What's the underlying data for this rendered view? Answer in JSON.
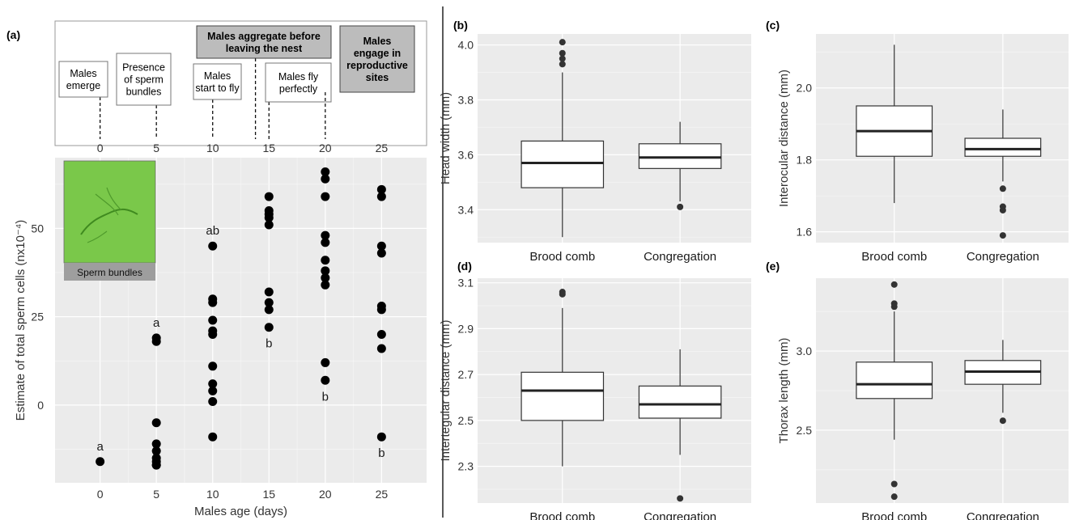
{
  "timeline": {
    "ticks": [
      "0",
      "5",
      "10",
      "15",
      "20",
      "25"
    ],
    "events": [
      {
        "day": 0,
        "lines": [
          "Males",
          "emerge"
        ],
        "style": "light"
      },
      {
        "day": 5,
        "lines": [
          "Presence",
          "of sperm",
          "bundles"
        ],
        "style": "light"
      },
      {
        "day": 10,
        "lines": [
          "Males",
          "start to fly"
        ],
        "style": "light"
      },
      {
        "day": 13.8,
        "lines": [
          "Males aggregate before",
          "leaving the nest"
        ],
        "style": "dark"
      },
      {
        "day": 15,
        "lines": [
          "Males fly",
          "perfectly"
        ],
        "style": "light"
      },
      {
        "day": 20,
        "lines": [
          "Males",
          "engage in",
          "reproductive",
          "sites"
        ],
        "style": "dark"
      }
    ]
  },
  "inset": {
    "caption": "Sperm bundles"
  },
  "chart_data": [
    {
      "panel": "(a)",
      "type": "scatter",
      "xlabel": "Males age (days)",
      "ylabel": "Estimate of total sperm cells (nx10⁻⁴)",
      "xticks": [
        "0",
        "5",
        "10",
        "15",
        "20",
        "25"
      ],
      "yticks": [
        "0",
        "25",
        "50"
      ],
      "xlim": [
        -4,
        29
      ],
      "ylim": [
        -22,
        70
      ],
      "groups": [
        {
          "x": 0,
          "y": [
            -16
          ],
          "letter": "a",
          "letter_pos": "above"
        },
        {
          "x": 5,
          "y": [
            19,
            18,
            -5,
            -11,
            -13,
            -15,
            -17,
            -17,
            -16
          ],
          "letter": "a",
          "letter_pos": "above"
        },
        {
          "x": 10,
          "y": [
            45,
            30,
            29,
            24,
            21,
            20,
            11,
            6,
            4,
            1,
            -9
          ],
          "letter": "ab",
          "letter_pos": "above"
        },
        {
          "x": 15,
          "y": [
            59,
            55,
            54,
            53,
            51,
            32,
            29,
            27,
            22
          ],
          "letter": "b",
          "letter_pos": "below"
        },
        {
          "x": 20,
          "y": [
            66,
            64,
            59,
            48,
            46,
            41,
            38,
            36,
            34,
            12,
            7
          ],
          "letter": "b",
          "letter_pos": "below"
        },
        {
          "x": 25,
          "y": [
            61,
            59,
            45,
            43,
            28,
            27,
            20,
            16,
            -9
          ],
          "letter": "b",
          "letter_pos": "below"
        }
      ]
    },
    {
      "panel": "(b)",
      "type": "boxplot",
      "ylabel": "Head width (mm)",
      "categories": [
        "Brood comb",
        "Congregation"
      ],
      "yticks": [
        "3.4",
        "3.6",
        "3.8",
        "4.0"
      ],
      "ylim": [
        3.28,
        4.04
      ],
      "boxes": [
        {
          "q1": 3.48,
          "median": 3.57,
          "q3": 3.65,
          "whisker_low": 3.3,
          "whisker_high": 3.9,
          "outliers": [
            4.01,
            3.97,
            3.95,
            3.93
          ]
        },
        {
          "q1": 3.55,
          "median": 3.59,
          "q3": 3.64,
          "whisker_low": 3.43,
          "whisker_high": 3.72,
          "outliers": [
            3.41
          ]
        }
      ]
    },
    {
      "panel": "(c)",
      "type": "boxplot",
      "ylabel": "Interocular distance (mm)",
      "categories": [
        "Brood comb",
        "Congregation"
      ],
      "yticks": [
        "1.6",
        "1.8",
        "2.0"
      ],
      "ylim": [
        1.57,
        2.15
      ],
      "boxes": [
        {
          "q1": 1.81,
          "median": 1.88,
          "q3": 1.95,
          "whisker_low": 1.68,
          "whisker_high": 2.12,
          "outliers": []
        },
        {
          "q1": 1.81,
          "median": 1.83,
          "q3": 1.86,
          "whisker_low": 1.74,
          "whisker_high": 1.94,
          "outliers": [
            1.72,
            1.67,
            1.66,
            1.59
          ]
        }
      ]
    },
    {
      "panel": "(d)",
      "type": "boxplot",
      "ylabel": "Intertegular distance (mm)",
      "categories": [
        "Brood comb",
        "Congregation"
      ],
      "yticks": [
        "2.3",
        "2.5",
        "2.7",
        "2.9",
        "3.1"
      ],
      "ylim": [
        2.14,
        3.12
      ],
      "boxes": [
        {
          "q1": 2.5,
          "median": 2.63,
          "q3": 2.71,
          "whisker_low": 2.3,
          "whisker_high": 2.99,
          "outliers": [
            3.06,
            3.05
          ]
        },
        {
          "q1": 2.51,
          "median": 2.57,
          "q3": 2.65,
          "whisker_low": 2.35,
          "whisker_high": 2.81,
          "outliers": [
            2.16
          ]
        }
      ]
    },
    {
      "panel": "(e)",
      "type": "boxplot",
      "ylabel": "Thorax length (mm)",
      "categories": [
        "Brood comb",
        "Congregation"
      ],
      "yticks": [
        "2.5",
        "3.0"
      ],
      "ylim": [
        2.04,
        3.46
      ],
      "boxes": [
        {
          "q1": 2.7,
          "median": 2.79,
          "q3": 2.93,
          "whisker_low": 2.44,
          "whisker_high": 3.25,
          "outliers": [
            3.42,
            3.3,
            3.28,
            2.16,
            2.08
          ]
        },
        {
          "q1": 2.79,
          "median": 2.87,
          "q3": 2.94,
          "whisker_low": 2.61,
          "whisker_high": 3.07,
          "outliers": [
            2.56
          ]
        }
      ]
    }
  ]
}
